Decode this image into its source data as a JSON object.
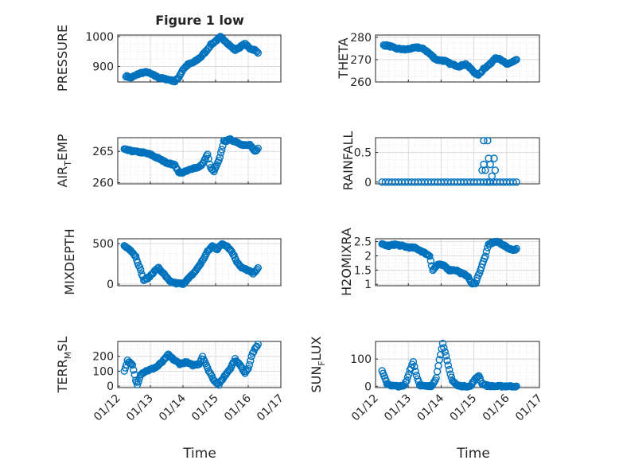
{
  "figure": {
    "title": "Figure 1 low"
  },
  "colors": {
    "series": "#0072BD",
    "axis": "#262626",
    "grid": "#dcdcdc"
  },
  "xaxis": {
    "label": "Time",
    "range": [
      0,
      5
    ],
    "ticks": [
      0,
      1,
      2,
      3,
      4,
      5
    ],
    "tick_labels": [
      "01/12",
      "01/13",
      "01/14",
      "01/15",
      "01/16",
      "01/17"
    ]
  },
  "chart_data": [
    {
      "type": "scatter",
      "name": "pressure",
      "ylabel": "PRESSURE",
      "ylim": [
        848,
        1005
      ],
      "yticks": [
        900,
        1000
      ],
      "ytick_labels": [
        "900",
        "1000"
      ],
      "knots": [
        [
          0.25,
          868
        ],
        [
          0.4,
          862
        ],
        [
          0.55,
          870
        ],
        [
          0.7,
          878
        ],
        [
          0.9,
          881
        ],
        [
          1.05,
          873
        ],
        [
          1.25,
          863
        ],
        [
          1.45,
          858
        ],
        [
          1.6,
          855
        ],
        [
          1.75,
          850
        ],
        [
          1.85,
          860
        ],
        [
          2.0,
          890
        ],
        [
          2.15,
          906
        ],
        [
          2.35,
          915
        ],
        [
          2.55,
          932
        ],
        [
          2.7,
          950
        ],
        [
          2.85,
          972
        ],
        [
          3.0,
          985
        ],
        [
          3.15,
          998
        ],
        [
          3.3,
          985
        ],
        [
          3.45,
          968
        ],
        [
          3.6,
          955
        ],
        [
          3.75,
          965
        ],
        [
          3.9,
          975
        ],
        [
          4.05,
          960
        ],
        [
          4.2,
          955
        ],
        [
          4.3,
          945
        ]
      ]
    },
    {
      "type": "scatter",
      "name": "theta",
      "ylabel": "THETA",
      "ylim": [
        260,
        281
      ],
      "yticks": [
        260,
        270,
        280
      ],
      "ytick_labels": [
        "260",
        "270",
        "280"
      ],
      "knots": [
        [
          0.25,
          276.5
        ],
        [
          0.45,
          276
        ],
        [
          0.6,
          275
        ],
        [
          0.9,
          274.5
        ],
        [
          1.1,
          275
        ],
        [
          1.3,
          275.5
        ],
        [
          1.5,
          274.5
        ],
        [
          1.7,
          272
        ],
        [
          1.85,
          270
        ],
        [
          2.1,
          269.5
        ],
        [
          2.3,
          268
        ],
        [
          2.55,
          267
        ],
        [
          2.75,
          268
        ],
        [
          2.9,
          266
        ],
        [
          3.1,
          263
        ],
        [
          3.2,
          264
        ],
        [
          3.3,
          266
        ],
        [
          3.5,
          268
        ],
        [
          3.65,
          271
        ],
        [
          3.8,
          270
        ],
        [
          4.0,
          268
        ],
        [
          4.2,
          269
        ],
        [
          4.3,
          270
        ]
      ]
    },
    {
      "type": "scatter",
      "name": "air_temp",
      "ylabel": "AIR_TEMP",
      "ylim": [
        259.8,
        267.2
      ],
      "yticks": [
        260,
        265
      ],
      "ytick_labels": [
        "260",
        "265"
      ],
      "knots": [
        [
          0.2,
          265.3
        ],
        [
          0.5,
          265.0
        ],
        [
          0.8,
          264.8
        ],
        [
          1.0,
          264.5
        ],
        [
          1.2,
          264.0
        ],
        [
          1.5,
          263.2
        ],
        [
          1.75,
          262.8
        ],
        [
          1.9,
          261.5
        ],
        [
          2.1,
          261.8
        ],
        [
          2.3,
          262.3
        ],
        [
          2.5,
          262.5
        ],
        [
          2.6,
          263
        ],
        [
          2.75,
          264.5
        ],
        [
          2.85,
          262.3
        ],
        [
          2.95,
          261.8
        ],
        [
          3.1,
          263.5
        ],
        [
          3.25,
          266.6
        ],
        [
          3.45,
          266.9
        ],
        [
          3.65,
          266.5
        ],
        [
          3.85,
          266
        ],
        [
          4.05,
          266
        ],
        [
          4.2,
          265
        ],
        [
          4.3,
          265.5
        ]
      ]
    },
    {
      "type": "scatter",
      "name": "rainfall",
      "ylabel": "RAINFALL",
      "ylim": [
        -0.03,
        0.75
      ],
      "yticks": [
        0,
        0.5
      ],
      "ytick_labels": [
        "0",
        "0.5"
      ],
      "points": [
        [
          0.2,
          0
        ],
        [
          0.3,
          0
        ],
        [
          0.4,
          0
        ],
        [
          0.5,
          0
        ],
        [
          0.6,
          0
        ],
        [
          0.7,
          0
        ],
        [
          0.8,
          0
        ],
        [
          0.9,
          0
        ],
        [
          1.0,
          0
        ],
        [
          1.1,
          0
        ],
        [
          1.2,
          0
        ],
        [
          1.3,
          0
        ],
        [
          1.4,
          0
        ],
        [
          1.5,
          0
        ],
        [
          1.6,
          0
        ],
        [
          1.7,
          0
        ],
        [
          1.8,
          0
        ],
        [
          1.9,
          0
        ],
        [
          2.0,
          0
        ],
        [
          2.1,
          0
        ],
        [
          2.2,
          0
        ],
        [
          2.3,
          0
        ],
        [
          2.4,
          0
        ],
        [
          2.5,
          0
        ],
        [
          2.6,
          0
        ],
        [
          2.7,
          0
        ],
        [
          2.8,
          0
        ],
        [
          2.9,
          0
        ],
        [
          3.0,
          0
        ],
        [
          3.1,
          0
        ],
        [
          3.2,
          0
        ],
        [
          3.3,
          0
        ],
        [
          3.4,
          0
        ],
        [
          3.5,
          0
        ],
        [
          3.6,
          0
        ],
        [
          3.7,
          0
        ],
        [
          3.8,
          0
        ],
        [
          3.9,
          0
        ],
        [
          4.0,
          0
        ],
        [
          4.1,
          0
        ],
        [
          4.2,
          0
        ],
        [
          4.3,
          0
        ],
        [
          3.25,
          0.2
        ],
        [
          3.3,
          0.3
        ],
        [
          3.35,
          0.2
        ],
        [
          3.3,
          0.7
        ],
        [
          3.42,
          0.7
        ],
        [
          3.45,
          0.4
        ],
        [
          3.5,
          0.3
        ],
        [
          3.55,
          0.1
        ],
        [
          3.62,
          0.4
        ],
        [
          3.65,
          0.2
        ],
        [
          3.48,
          0.0
        ]
      ]
    },
    {
      "type": "scatter",
      "name": "mixdepth",
      "ylabel": "MIXDEPTH",
      "ylim": [
        -20,
        560
      ],
      "yticks": [
        0,
        500
      ],
      "ytick_labels": [
        "0",
        "500"
      ],
      "knots": [
        [
          0.2,
          470
        ],
        [
          0.4,
          420
        ],
        [
          0.55,
          340
        ],
        [
          0.7,
          170
        ],
        [
          0.8,
          50
        ],
        [
          0.95,
          80
        ],
        [
          1.1,
          150
        ],
        [
          1.25,
          200
        ],
        [
          1.4,
          130
        ],
        [
          1.6,
          30
        ],
        [
          1.8,
          10
        ],
        [
          2.0,
          5
        ],
        [
          2.2,
          80
        ],
        [
          2.4,
          170
        ],
        [
          2.6,
          290
        ],
        [
          2.75,
          400
        ],
        [
          2.9,
          470
        ],
        [
          3.05,
          430
        ],
        [
          3.2,
          500
        ],
        [
          3.35,
          470
        ],
        [
          3.5,
          400
        ],
        [
          3.65,
          280
        ],
        [
          3.8,
          200
        ],
        [
          4.0,
          170
        ],
        [
          4.15,
          130
        ],
        [
          4.3,
          200
        ]
      ]
    },
    {
      "type": "scatter",
      "name": "h2omixra",
      "ylabel": "H2OMIXRA",
      "ylim": [
        0.95,
        2.6
      ],
      "yticks": [
        1,
        1.5,
        2,
        2.5
      ],
      "ytick_labels": [
        "1",
        "1.5",
        "2",
        "2.5"
      ],
      "knots": [
        [
          0.2,
          2.4
        ],
        [
          0.4,
          2.35
        ],
        [
          0.6,
          2.4
        ],
        [
          0.8,
          2.35
        ],
        [
          1.0,
          2.3
        ],
        [
          1.2,
          2.28
        ],
        [
          1.35,
          2.2
        ],
        [
          1.5,
          2.1
        ],
        [
          1.65,
          2.0
        ],
        [
          1.75,
          1.5
        ],
        [
          1.9,
          1.7
        ],
        [
          2.1,
          1.65
        ],
        [
          2.25,
          1.5
        ],
        [
          2.45,
          1.5
        ],
        [
          2.6,
          1.4
        ],
        [
          2.8,
          1.3
        ],
        [
          2.95,
          1.0
        ],
        [
          3.05,
          1.05
        ],
        [
          3.2,
          1.5
        ],
        [
          3.35,
          2.0
        ],
        [
          3.45,
          2.4
        ],
        [
          3.65,
          2.5
        ],
        [
          3.8,
          2.45
        ],
        [
          4.0,
          2.3
        ],
        [
          4.2,
          2.2
        ],
        [
          4.3,
          2.25
        ]
      ]
    },
    {
      "type": "scatter",
      "name": "terr_msl",
      "ylabel": "TERR_MSL",
      "ylim": [
        -10,
        300
      ],
      "yticks": [
        0,
        100,
        200
      ],
      "ytick_labels": [
        "0",
        "100",
        "200"
      ],
      "knots": [
        [
          0.2,
          100
        ],
        [
          0.3,
          170
        ],
        [
          0.45,
          140
        ],
        [
          0.55,
          40
        ],
        [
          0.6,
          10
        ],
        [
          0.7,
          80
        ],
        [
          0.85,
          100
        ],
        [
          1.0,
          110
        ],
        [
          1.2,
          130
        ],
        [
          1.4,
          170
        ],
        [
          1.55,
          210
        ],
        [
          1.7,
          180
        ],
        [
          1.9,
          150
        ],
        [
          2.1,
          160
        ],
        [
          2.3,
          140
        ],
        [
          2.5,
          150
        ],
        [
          2.6,
          200
        ],
        [
          2.75,
          120
        ],
        [
          2.85,
          80
        ],
        [
          2.95,
          40
        ],
        [
          3.1,
          10
        ],
        [
          3.25,
          60
        ],
        [
          3.45,
          120
        ],
        [
          3.6,
          180
        ],
        [
          3.75,
          140
        ],
        [
          3.9,
          90
        ],
        [
          4.0,
          120
        ],
        [
          4.1,
          200
        ],
        [
          4.2,
          250
        ],
        [
          4.3,
          280
        ]
      ]
    },
    {
      "type": "scatter",
      "name": "sun_flux",
      "ylabel": "SUN_FLUX",
      "ylim": [
        -5,
        165
      ],
      "yticks": [
        0,
        100
      ],
      "ytick_labels": [
        "0",
        "100"
      ],
      "knots": [
        [
          0.2,
          55
        ],
        [
          0.35,
          10
        ],
        [
          0.5,
          2
        ],
        [
          0.7,
          0
        ],
        [
          0.85,
          0
        ],
        [
          0.95,
          20
        ],
        [
          1.05,
          60
        ],
        [
          1.15,
          90
        ],
        [
          1.25,
          40
        ],
        [
          1.35,
          5
        ],
        [
          1.5,
          0
        ],
        [
          1.7,
          0
        ],
        [
          1.85,
          30
        ],
        [
          1.95,
          100
        ],
        [
          2.05,
          155
        ],
        [
          2.15,
          110
        ],
        [
          2.25,
          60
        ],
        [
          2.35,
          20
        ],
        [
          2.5,
          2
        ],
        [
          2.7,
          0
        ],
        [
          2.9,
          0
        ],
        [
          3.0,
          20
        ],
        [
          3.15,
          40
        ],
        [
          3.25,
          10
        ],
        [
          3.4,
          2
        ],
        [
          3.6,
          0
        ],
        [
          3.8,
          0
        ],
        [
          4.0,
          0
        ],
        [
          4.2,
          0
        ],
        [
          4.3,
          0
        ]
      ]
    }
  ]
}
